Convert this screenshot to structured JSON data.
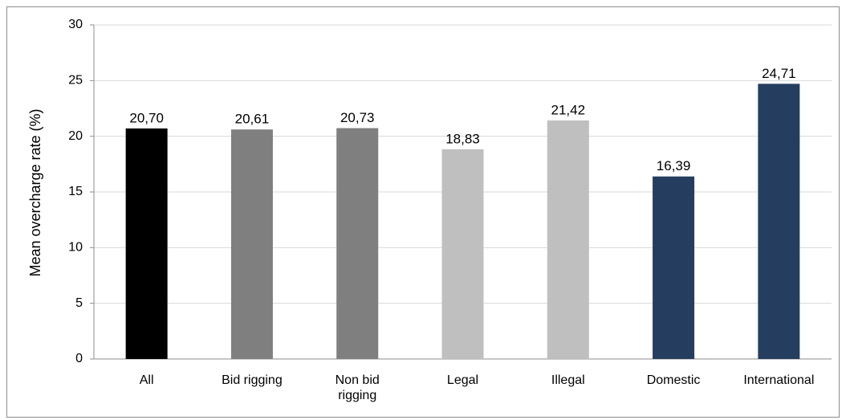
{
  "chart_data": {
    "type": "bar",
    "y_label": "Mean overcharge rate (%)",
    "categories": [
      "All",
      "Bid rigging",
      "Non bid rigging",
      "Legal",
      "Illegal",
      "Domestic",
      "International"
    ],
    "values": [
      20.7,
      20.61,
      20.73,
      18.83,
      21.42,
      16.39,
      24.71
    ],
    "value_labels": [
      "20,70",
      "20,61",
      "20,73",
      "18,83",
      "21,42",
      "16,39",
      "24,71"
    ],
    "colors": [
      "#000000",
      "#7f7f7f",
      "#7f7f7f",
      "#bfbfbf",
      "#bfbfbf",
      "#253e5f",
      "#253e5f"
    ],
    "ylim": [
      0,
      30
    ],
    "yticks": [
      0,
      5,
      10,
      15,
      20,
      25,
      30
    ],
    "grid": true
  }
}
